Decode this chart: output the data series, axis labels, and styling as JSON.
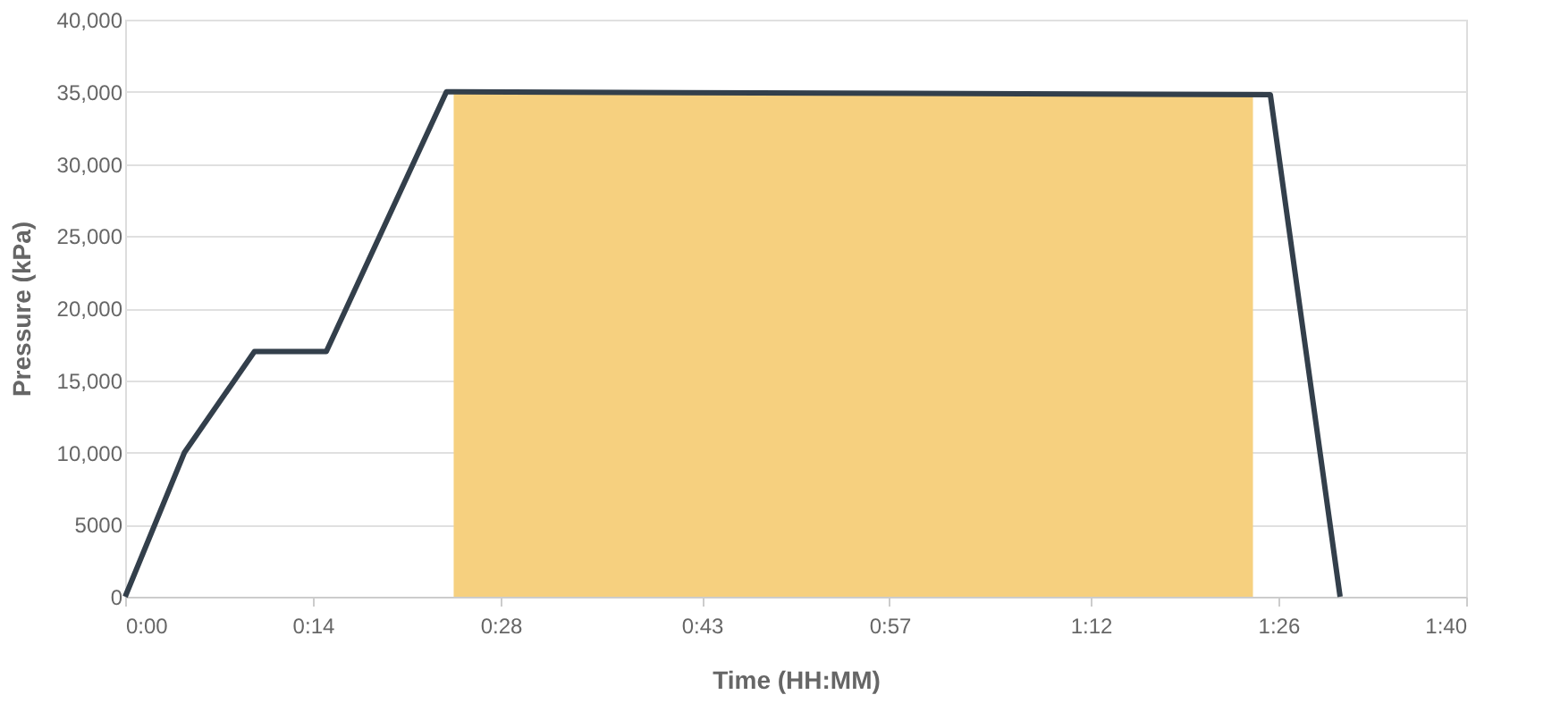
{
  "chart_data": {
    "type": "line",
    "xlabel": "Time (HH:MM)",
    "ylabel": "Pressure (kPa)",
    "xlim": [
      0,
      1.6667
    ],
    "ylim": [
      0,
      40000
    ],
    "xticks": [
      {
        "value": 0,
        "label": "0:00"
      },
      {
        "value": 0.2333,
        "label": "0:14"
      },
      {
        "value": 0.4667,
        "label": "0:28"
      },
      {
        "value": 0.7167,
        "label": "0:43"
      },
      {
        "value": 0.95,
        "label": "0:57"
      },
      {
        "value": 1.2,
        "label": "1:12"
      },
      {
        "value": 1.4333,
        "label": "1:26"
      },
      {
        "value": 1.6667,
        "label": "1:40"
      }
    ],
    "yticks": [
      0,
      {
        "value": 5000,
        "label": "5000"
      },
      {
        "value": 10000,
        "label": "10,000"
      },
      {
        "value": 15000,
        "label": "15,000"
      },
      {
        "value": 20000,
        "label": "20,000"
      },
      {
        "value": 25000,
        "label": "25,000"
      },
      {
        "value": 30000,
        "label": "30,000"
      },
      {
        "value": 35000,
        "label": "35,000"
      },
      {
        "value": 40000,
        "label": "40,000"
      }
    ],
    "grid": "y",
    "line_style": "solid",
    "marker": "none",
    "series": [
      {
        "type": "area",
        "color": "#f6d07f",
        "x": [
          0.4083,
          1.4017
        ],
        "values": [
          35000,
          34800
        ]
      },
      {
        "color": "#333f4b",
        "x": [
          0,
          0.0737,
          0.1607,
          0.25,
          0.3993,
          1.4233,
          1.51
        ],
        "values": [
          0,
          10000,
          17000,
          17000,
          35000,
          34800,
          0
        ]
      }
    ]
  }
}
